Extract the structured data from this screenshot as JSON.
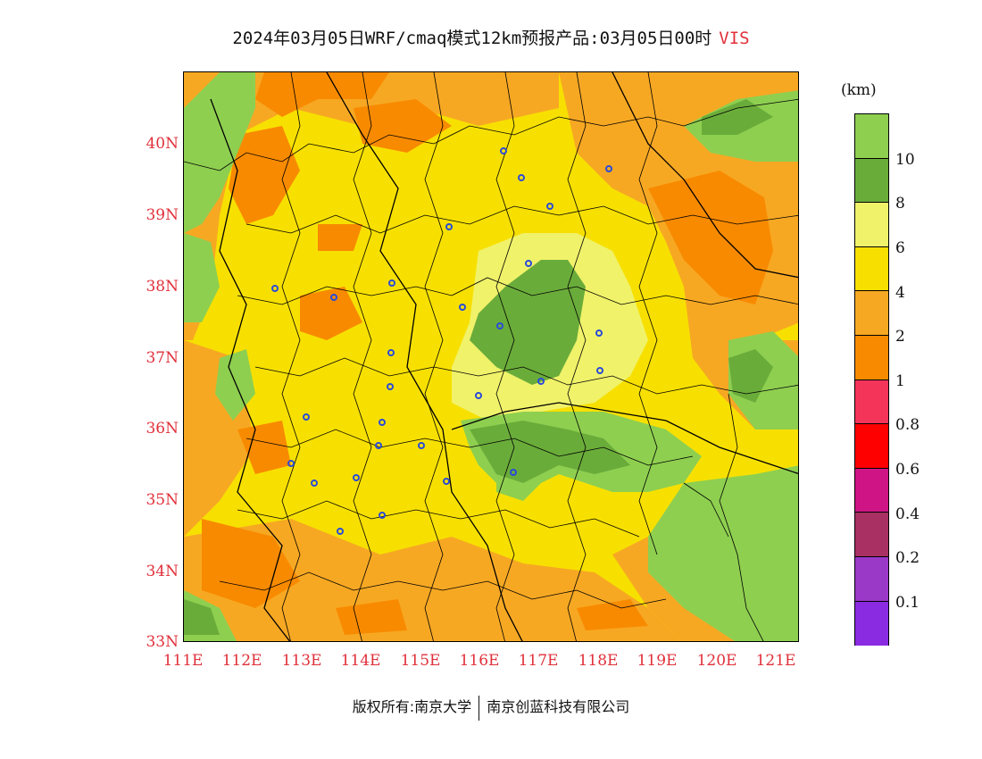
{
  "title": {
    "main": "2024年03月05日WRF/cmaq模式12km预报产品:03月05日00时",
    "variable": "VIS"
  },
  "map": {
    "lat_labels": [
      "40N",
      "39N",
      "38N",
      "37N",
      "36N",
      "35N",
      "34N",
      "33N"
    ],
    "lon_labels": [
      "111E",
      "112E",
      "113E",
      "114E",
      "115E",
      "116E",
      "117E",
      "118E",
      "119E",
      "120E",
      "121E"
    ],
    "lat_range": [
      33,
      41
    ],
    "lon_range": [
      111,
      121.4
    ]
  },
  "legend": {
    "unit": "(km)",
    "colors": [
      "#8ecf50",
      "#6aac3a",
      "#f0f26a",
      "#f7e000",
      "#f7a823",
      "#f88a00",
      "#f5345a",
      "#ff0000",
      "#cf1585",
      "#a83062",
      "#9a38c8",
      "#8a2be2"
    ],
    "labels": [
      "10",
      "8",
      "6",
      "4",
      "2",
      "1",
      "0.8",
      "0.6",
      "0.4",
      "0.2",
      "0.1"
    ]
  },
  "footer": {
    "left": "版权所有:南京大学",
    "right": "南京创蓝科技有限公司"
  }
}
